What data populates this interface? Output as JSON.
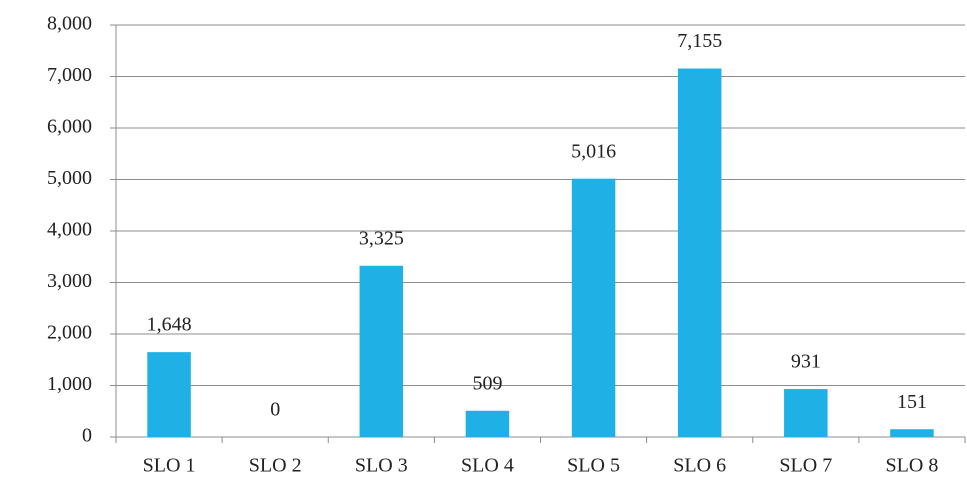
{
  "chart_data": {
    "type": "bar",
    "categories": [
      "SLO 1",
      "SLO 2",
      "SLO 3",
      "SLO 4",
      "SLO 5",
      "SLO 6",
      "SLO 7",
      "SLO 8"
    ],
    "values": [
      1648,
      0,
      3325,
      509,
      5016,
      7155,
      931,
      151
    ],
    "value_labels": [
      "1,648",
      "0",
      "3,325",
      "509",
      "5,016",
      "7,155",
      "931",
      "151"
    ],
    "color": "#1fb0e6",
    "ylim": [
      0,
      8000
    ],
    "yticks": [
      0,
      {
        "value": 1000,
        "label": "1,000"
      },
      {
        "value": 2000,
        "label": "2,000"
      },
      {
        "value": 3000,
        "label": "3,000"
      },
      {
        "value": 4000,
        "label": "4,000"
      },
      {
        "value": 5000,
        "label": "5,000"
      },
      {
        "value": 6000,
        "label": "6,000"
      },
      {
        "value": 7000,
        "label": "7,000"
      },
      {
        "value": 8000,
        "label": "8,000"
      }
    ],
    "grid": true
  }
}
